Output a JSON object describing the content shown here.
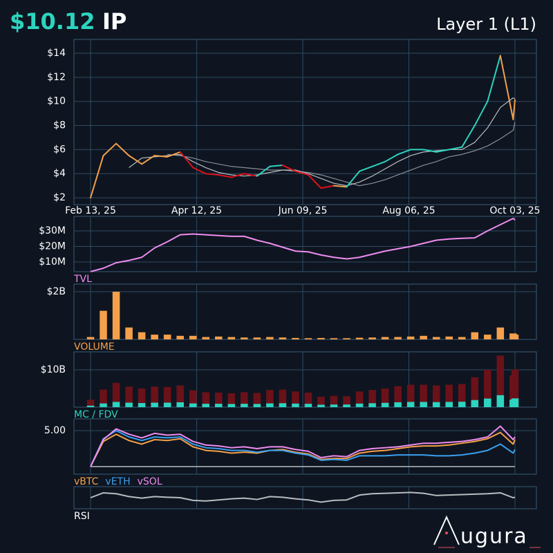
{
  "header": {
    "price": "$10.12",
    "ticker": "IP",
    "category": "Layer 1 (L1)"
  },
  "logo": "ugura",
  "chart_data": [
    {
      "type": "line",
      "x": [
        "2025-02-13",
        "2025-02-20",
        "2025-02-27",
        "2025-03-06",
        "2025-03-13",
        "2025-03-20",
        "2025-03-27",
        "2025-04-03",
        "2025-04-10",
        "2025-04-17",
        "2025-04-24",
        "2025-05-01",
        "2025-05-08",
        "2025-05-15",
        "2025-05-22",
        "2025-05-29",
        "2025-06-05",
        "2025-06-12",
        "2025-06-19",
        "2025-06-26",
        "2025-07-03",
        "2025-07-10",
        "2025-07-17",
        "2025-07-24",
        "2025-07-31",
        "2025-08-07",
        "2025-08-14",
        "2025-08-21",
        "2025-08-28",
        "2025-09-04",
        "2025-09-11",
        "2025-09-18",
        "2025-09-25",
        "2025-10-02",
        "2025-10-03"
      ],
      "xlim": [
        "2025-02-13",
        "2025-10-03"
      ],
      "xticks": [
        {
          "value": "2025-02-13",
          "label": "Feb 13, 25"
        },
        {
          "value": "2025-04-12",
          "label": "Apr 12, 25"
        },
        {
          "value": "2025-06-09",
          "label": "Jun 09, 25"
        },
        {
          "value": "2025-08-06",
          "label": "Aug 06, 25"
        },
        {
          "value": "2025-10-03",
          "label": "Oct 03, 25"
        }
      ],
      "ylim": [
        1.43,
        15.15
      ],
      "yticks": [
        {
          "value": 2,
          "label": "$2"
        },
        {
          "value": 4,
          "label": "$4"
        },
        {
          "value": 6,
          "label": "$6"
        },
        {
          "value": 8,
          "label": "$8"
        },
        {
          "value": 10,
          "label": "$10"
        },
        {
          "value": 12,
          "label": "$12"
        },
        {
          "value": 14,
          "label": "$14"
        }
      ],
      "grid": true,
      "series": [
        {
          "color": "#8a8f96",
          "values": [
            null,
            null,
            null,
            null,
            null,
            null,
            5.6,
            5.5,
            5.3,
            5.0,
            4.8,
            4.6,
            4.5,
            4.4,
            4.3,
            4.3,
            4.2,
            4.1,
            3.9,
            3.6,
            3.3,
            3.0,
            3.2,
            3.5,
            3.9,
            4.3,
            4.7,
            5.0,
            5.4,
            5.6,
            5.9,
            6.3,
            6.9,
            7.6,
            8.3
          ]
        },
        {
          "color": "#b9bdc2",
          "values": [
            null,
            null,
            null,
            4.5,
            5.3,
            5.4,
            5.5,
            5.6,
            5.0,
            4.5,
            4.1,
            3.9,
            3.8,
            3.9,
            4.1,
            4.3,
            4.3,
            4.0,
            3.6,
            3.2,
            3.0,
            3.3,
            3.8,
            4.4,
            5.0,
            5.5,
            5.8,
            5.9,
            6.0,
            6.0,
            6.6,
            7.8,
            9.5,
            10.3,
            10.2
          ]
        },
        {
          "color": "#f5a04a",
          "values": [
            2.0,
            5.5,
            6.5,
            5.5,
            4.8,
            5.5,
            5.4,
            5.8,
            4.5,
            4.0,
            3.9,
            3.7,
            4.0,
            3.8,
            4.6,
            4.7,
            4.2,
            3.9,
            2.8,
            3.0,
            2.9,
            4.2,
            4.6,
            5.0,
            5.6,
            6.0,
            6.0,
            5.8,
            6.0,
            6.2,
            8.0,
            10.0,
            13.8,
            8.5,
            10.12
          ],
          "segment_colors": [
            "#f5a04a",
            "#f5a04a",
            "#f5a04a",
            "#f5a04a",
            "#f5a04a",
            "#f5a04a",
            "#f5a04a",
            "#f5a04a",
            "#e0101a",
            "#e0101a",
            "#e0101a",
            "#e0101a",
            "#e0101a",
            "#e0101a",
            "#2dd4bf",
            "#2dd4bf",
            "#e0101a",
            "#e0101a",
            "#e0101a",
            "#e0101a",
            "#f5a04a",
            "#2dd4bf",
            "#2dd4bf",
            "#2dd4bf",
            "#2dd4bf",
            "#2dd4bf",
            "#2dd4bf",
            "#2dd4bf",
            "#2dd4bf",
            "#2dd4bf",
            "#2dd4bf",
            "#2dd4bf",
            "#2dd4bf",
            "#f5a04a",
            "#f5a04a"
          ]
        }
      ]
    },
    {
      "type": "line",
      "title": "TVL",
      "title_color": "#f08cf0",
      "ylim": [
        3780000,
        39330000
      ],
      "yticks": [
        {
          "value": 10000000,
          "label": "$10M"
        },
        {
          "value": 20000000,
          "label": "$20M"
        },
        {
          "value": 30000000,
          "label": "$30M"
        }
      ],
      "grid": true,
      "series": [
        {
          "color": "#f08cf0",
          "values": [
            3800000,
            6000000,
            9500000,
            11000000,
            13000000,
            19000000,
            23000000,
            27500000,
            28000000,
            27500000,
            27000000,
            26500000,
            26500000,
            24000000,
            22000000,
            19500000,
            17000000,
            16500000,
            14500000,
            13000000,
            12000000,
            13000000,
            15000000,
            17000000,
            18500000,
            20000000,
            22000000,
            24000000,
            24800000,
            25200000,
            25500000,
            30000000,
            34000000,
            38000000,
            37000000
          ]
        }
      ]
    },
    {
      "type": "bar",
      "title": "VOLUME",
      "title_color": "#f5a04a",
      "ylim": [
        0,
        2319000000
      ],
      "yticks": [
        {
          "value": 2000000000,
          "label": "$2B"
        }
      ],
      "grid": true,
      "series": [
        {
          "color": "#f5a04a",
          "values": [
            100000000,
            1200000000,
            2000000000,
            500000000,
            300000000,
            200000000,
            200000000,
            150000000,
            150000000,
            100000000,
            120000000,
            100000000,
            80000000,
            80000000,
            100000000,
            80000000,
            60000000,
            50000000,
            60000000,
            50000000,
            50000000,
            70000000,
            80000000,
            100000000,
            100000000,
            120000000,
            150000000,
            100000000,
            120000000,
            100000000,
            300000000,
            200000000,
            500000000,
            250000000,
            200000000
          ]
        }
      ]
    },
    {
      "type": "bar",
      "title": "MC / FDV",
      "title_color": "#2dd4bf",
      "ylim": [
        0,
        14810000000
      ],
      "yticks": [
        {
          "value": 10000000000,
          "label": "$10B"
        }
      ],
      "grid": true,
      "series": [
        {
          "color": "#6b1119",
          "values": [
            2000000000,
            4700000000,
            6500000000,
            5500000000,
            5000000000,
            5500000000,
            5400000000,
            5800000000,
            4500000000,
            4000000000,
            3900000000,
            3700000000,
            4000000000,
            3800000000,
            4600000000,
            4700000000,
            4200000000,
            3900000000,
            2800000000,
            3000000000,
            2900000000,
            4200000000,
            4600000000,
            5000000000,
            5600000000,
            6000000000,
            6000000000,
            5800000000,
            6000000000,
            6200000000,
            8000000000,
            10000000000,
            13800000000,
            8500000000,
            10100000000
          ]
        },
        {
          "color": "#2dd4bf",
          "values": [
            400000000,
            1000000000,
            1400000000,
            1200000000,
            1100000000,
            1200000000,
            1200000000,
            1300000000,
            1000000000,
            900000000,
            900000000,
            850000000,
            900000000,
            850000000,
            1000000000,
            1050000000,
            950000000,
            900000000,
            650000000,
            700000000,
            700000000,
            950000000,
            1050000000,
            1150000000,
            1300000000,
            1400000000,
            1400000000,
            1350000000,
            1400000000,
            1450000000,
            1900000000,
            2300000000,
            3200000000,
            2000000000,
            2350000000
          ]
        }
      ]
    },
    {
      "type": "line",
      "ylim": [
        0.15,
        6.31
      ],
      "yticks": [
        {
          "value": 5,
          "label": "5.00"
        }
      ],
      "grid": true,
      "reference_line": 1,
      "series": [
        {
          "name": "vBTC",
          "color": "#f5a04a",
          "values": [
            1.0,
            3.8,
            4.6,
            3.9,
            3.5,
            4.0,
            3.9,
            4.1,
            3.2,
            2.8,
            2.7,
            2.5,
            2.6,
            2.5,
            2.8,
            2.9,
            2.6,
            2.4,
            1.8,
            1.9,
            1.9,
            2.5,
            2.7,
            2.8,
            3.0,
            3.2,
            3.3,
            3.3,
            3.4,
            3.6,
            3.8,
            4.1,
            4.8,
            3.5,
            4.0
          ]
        },
        {
          "name": "vETH",
          "color": "#3aa0f0",
          "values": [
            1.0,
            4.1,
            5.0,
            4.3,
            3.9,
            4.3,
            4.2,
            4.3,
            3.5,
            3.1,
            3.0,
            2.8,
            2.8,
            2.6,
            2.8,
            2.8,
            2.5,
            2.3,
            1.7,
            1.8,
            1.7,
            2.2,
            2.2,
            2.2,
            2.3,
            2.3,
            2.3,
            2.2,
            2.2,
            2.3,
            2.5,
            2.8,
            3.5,
            2.5,
            2.9
          ]
        },
        {
          "name": "vSOL",
          "color": "#f08cf0",
          "values": [
            1.0,
            4.0,
            5.2,
            4.6,
            4.2,
            4.7,
            4.5,
            4.6,
            3.8,
            3.4,
            3.3,
            3.1,
            3.2,
            3.0,
            3.2,
            3.2,
            2.9,
            2.7,
            2.0,
            2.2,
            2.1,
            2.8,
            3.0,
            3.1,
            3.2,
            3.4,
            3.6,
            3.6,
            3.7,
            3.8,
            4.0,
            4.3,
            5.5,
            4.0,
            4.3
          ]
        }
      ]
    },
    {
      "type": "line",
      "title": "RSI",
      "title_color": "#ffffff",
      "ylim": [
        0,
        100
      ],
      "yticks": [],
      "grid": true,
      "series": [
        {
          "color": "#b9bdc2",
          "values": [
            50,
            72,
            68,
            55,
            48,
            55,
            52,
            50,
            38,
            35,
            40,
            45,
            48,
            42,
            55,
            52,
            45,
            40,
            30,
            38,
            40,
            62,
            68,
            70,
            72,
            74,
            70,
            60,
            62,
            64,
            66,
            68,
            72,
            50,
            52
          ]
        }
      ]
    }
  ]
}
